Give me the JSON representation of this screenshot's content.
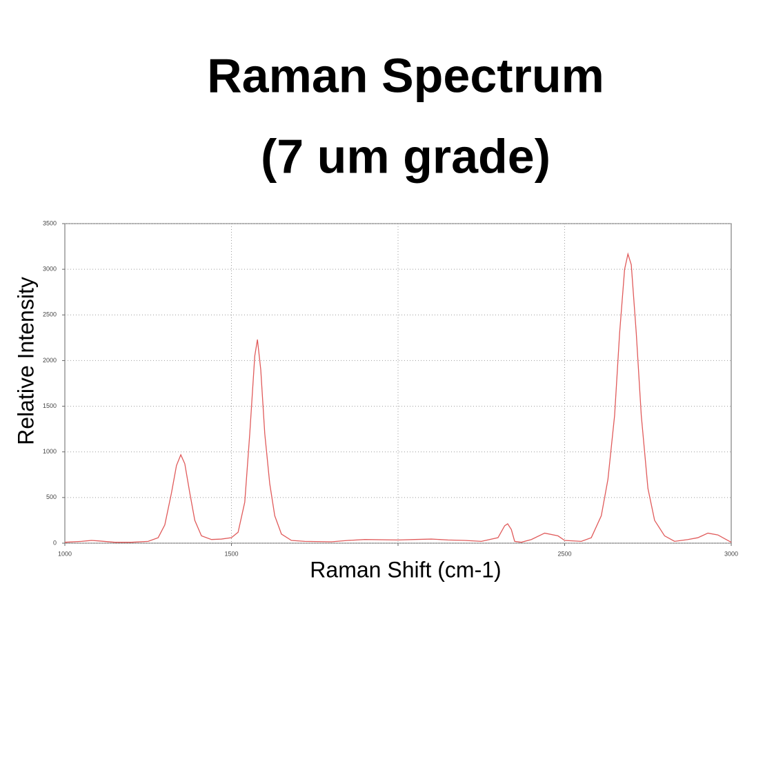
{
  "chart_data": {
    "type": "line",
    "title": [
      "Raman Spectrum",
      "(7 um grade)"
    ],
    "xlabel": "Raman Shift (cm-1)",
    "ylabel": "Relative Intensity",
    "x": [
      1000,
      1050,
      1080,
      1100,
      1150,
      1200,
      1250,
      1280,
      1300,
      1320,
      1335,
      1348,
      1360,
      1375,
      1390,
      1410,
      1440,
      1470,
      1500,
      1520,
      1540,
      1555,
      1570,
      1578,
      1588,
      1600,
      1615,
      1630,
      1650,
      1680,
      1720,
      1800,
      1850,
      1900,
      2000,
      2050,
      2100,
      2150,
      2200,
      2250,
      2300,
      2320,
      2329,
      2340,
      2350,
      2370,
      2400,
      2440,
      2480,
      2500,
      2550,
      2580,
      2610,
      2630,
      2650,
      2665,
      2680,
      2690,
      2700,
      2715,
      2730,
      2750,
      2770,
      2800,
      2830,
      2870,
      2900,
      2930,
      2960,
      2980,
      3000
    ],
    "series": [
      {
        "color": "#e05a5a",
        "values": [
          10,
          20,
          30,
          25,
          10,
          10,
          20,
          60,
          200,
          550,
          850,
          968,
          870,
          550,
          250,
          80,
          40,
          45,
          60,
          120,
          450,
          1200,
          2050,
          2230,
          1900,
          1200,
          650,
          300,
          100,
          30,
          20,
          15,
          30,
          40,
          35,
          40,
          45,
          35,
          30,
          20,
          60,
          190,
          212,
          150,
          20,
          10,
          40,
          110,
          80,
          30,
          20,
          60,
          300,
          700,
          1400,
          2300,
          3000,
          3167,
          3050,
          2300,
          1400,
          600,
          250,
          80,
          20,
          40,
          60,
          110,
          90,
          50,
          10
        ]
      }
    ],
    "xlim": [
      1000,
      3000
    ],
    "ylim": [
      0,
      3500
    ],
    "xticks": [
      1000,
      1500,
      2500,
      3000
    ],
    "xgrid": [
      1500,
      2000,
      2500
    ],
    "yticks": [
      0,
      500,
      1000,
      1500,
      2000,
      2500,
      3000,
      3500
    ],
    "grid": true
  }
}
